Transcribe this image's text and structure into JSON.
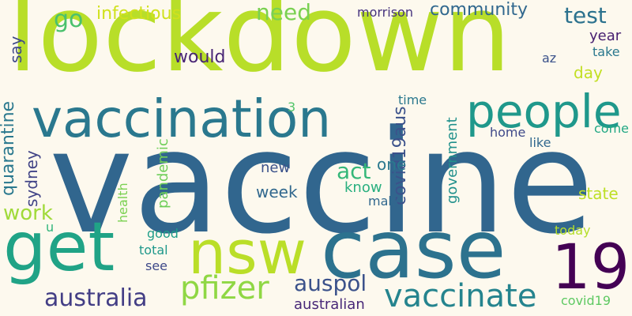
{
  "words": [
    {
      "text": "vaccine",
      "color": "#31668e"
    },
    {
      "text": "lockdown",
      "color": "#b8de29"
    },
    {
      "text": "case",
      "color": "#2c728e"
    },
    {
      "text": "get",
      "color": "#20a386"
    },
    {
      "text": "nsw",
      "color": "#bade28"
    },
    {
      "text": "vaccination",
      "color": "#2a788e"
    },
    {
      "text": "people",
      "color": "#1f988b"
    },
    {
      "text": "19",
      "color": "#440154"
    },
    {
      "text": "vaccinate",
      "color": "#25848e"
    },
    {
      "text": "pfizer",
      "color": "#8fd744"
    },
    {
      "text": "australia",
      "color": "#433e85"
    },
    {
      "text": "auspol",
      "color": "#3b528b"
    },
    {
      "text": "test",
      "color": "#2c728e"
    },
    {
      "text": "act",
      "color": "#35b779"
    },
    {
      "text": "work",
      "color": "#a0da39"
    },
    {
      "text": "go",
      "color": "#4ac16d"
    },
    {
      "text": "need",
      "color": "#7ad151"
    },
    {
      "text": "community",
      "color": "#31688e"
    },
    {
      "text": "infectious",
      "color": "#d0e11c"
    },
    {
      "text": "would",
      "color": "#482575"
    },
    {
      "text": "covid19aus",
      "color": "#3b528b"
    },
    {
      "text": "quarantine",
      "color": "#2a788e"
    },
    {
      "text": "sydney",
      "color": "#414487"
    },
    {
      "text": "morrison",
      "color": "#46337e"
    },
    {
      "text": "government",
      "color": "#21918c"
    },
    {
      "text": "say",
      "color": "#3e4989"
    },
    {
      "text": "year",
      "color": "#482071"
    },
    {
      "text": "one",
      "color": "#2a788e"
    },
    {
      "text": "new",
      "color": "#3b528b"
    },
    {
      "text": "week",
      "color": "#31688e"
    },
    {
      "text": "know",
      "color": "#29af7f"
    },
    {
      "text": "state",
      "color": "#bddf26"
    },
    {
      "text": "pandemic",
      "color": "#6ece58"
    },
    {
      "text": "health",
      "color": "#7ad151"
    },
    {
      "text": "good",
      "color": "#1f9e89"
    },
    {
      "text": "total",
      "color": "#1f988b"
    },
    {
      "text": "see",
      "color": "#3e4989"
    },
    {
      "text": "australian",
      "color": "#482878"
    },
    {
      "text": "day",
      "color": "#c2df23"
    },
    {
      "text": "take",
      "color": "#2a788e"
    },
    {
      "text": "az",
      "color": "#3b528b"
    },
    {
      "text": "time",
      "color": "#2a788e"
    },
    {
      "text": "3",
      "color": "#52c569"
    },
    {
      "text": "home",
      "color": "#3e4989"
    },
    {
      "text": "like",
      "color": "#31688e"
    },
    {
      "text": "come",
      "color": "#22a884"
    },
    {
      "text": "make",
      "color": "#31688e"
    },
    {
      "text": "today",
      "color": "#b5de2b"
    },
    {
      "text": "covid19",
      "color": "#5ec962"
    },
    {
      "text": "u",
      "color": "#31b57b"
    }
  ]
}
